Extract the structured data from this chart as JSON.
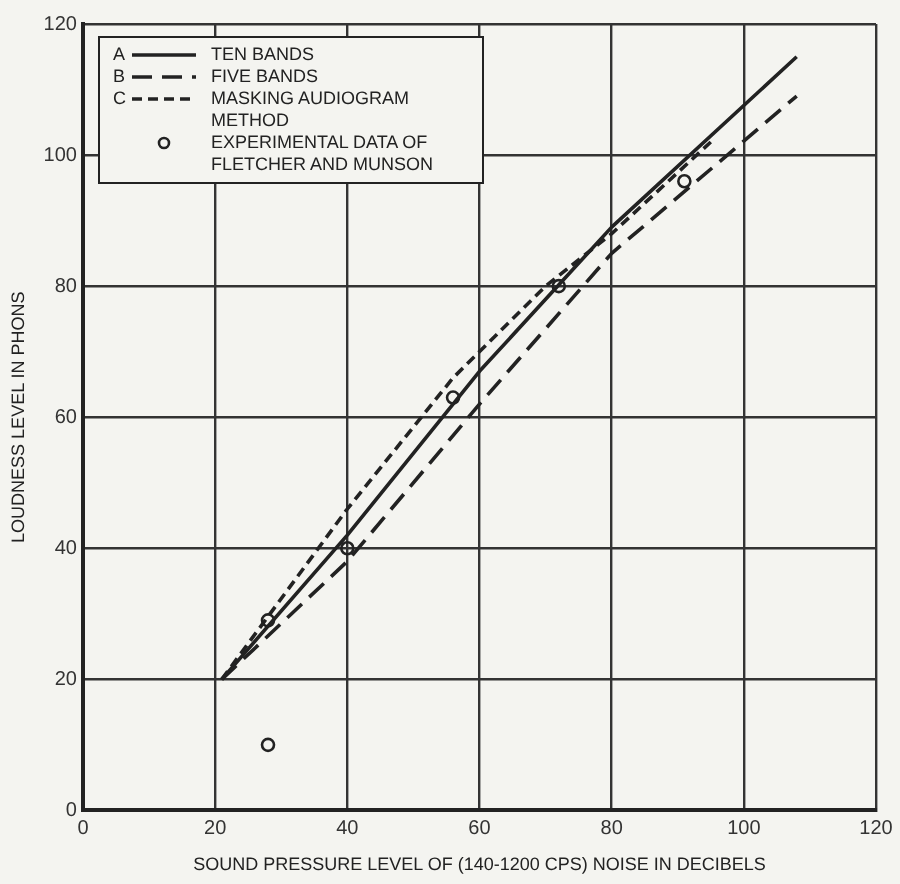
{
  "chart_data": {
    "type": "line",
    "xlabel": "SOUND PRESSURE LEVEL OF (140-1200 CPS) NOISE IN DECIBELS",
    "ylabel": "LOUDNESS LEVEL IN PHONS",
    "xlim": [
      0,
      120
    ],
    "ylim": [
      0,
      120
    ],
    "xticks": [
      0,
      20,
      40,
      60,
      80,
      100,
      120
    ],
    "yticks": [
      0,
      20,
      40,
      60,
      80,
      100,
      120
    ],
    "grid": true,
    "legend": "top left",
    "series": [
      {
        "name": "A TEN BANDS",
        "line_style": "solid",
        "color": "#222222",
        "x": [
          21,
          40,
          60,
          80,
          108
        ],
        "values": [
          20,
          42,
          67,
          89,
          115
        ]
      },
      {
        "name": "B FIVE BANDS",
        "line_style": "dashed",
        "color": "#222222",
        "x": [
          21,
          40,
          60,
          80,
          108
        ],
        "values": [
          20,
          38,
          62,
          85,
          109
        ]
      },
      {
        "name": "C MASKING AUDIOGRAM METHOD",
        "line_style": "dotted",
        "color": "#222222",
        "x": [
          21,
          40,
          56,
          70,
          80,
          95
        ],
        "values": [
          20,
          46,
          66,
          80,
          88,
          102
        ]
      },
      {
        "name": "EXPERIMENTAL DATA OF FLETCHER AND MUNSON",
        "type": "scatter",
        "marker": "circle",
        "color": "#222222",
        "x": [
          28,
          28,
          40,
          56,
          72,
          91
        ],
        "values": [
          10,
          29,
          40,
          63,
          80,
          96
        ]
      }
    ]
  }
}
